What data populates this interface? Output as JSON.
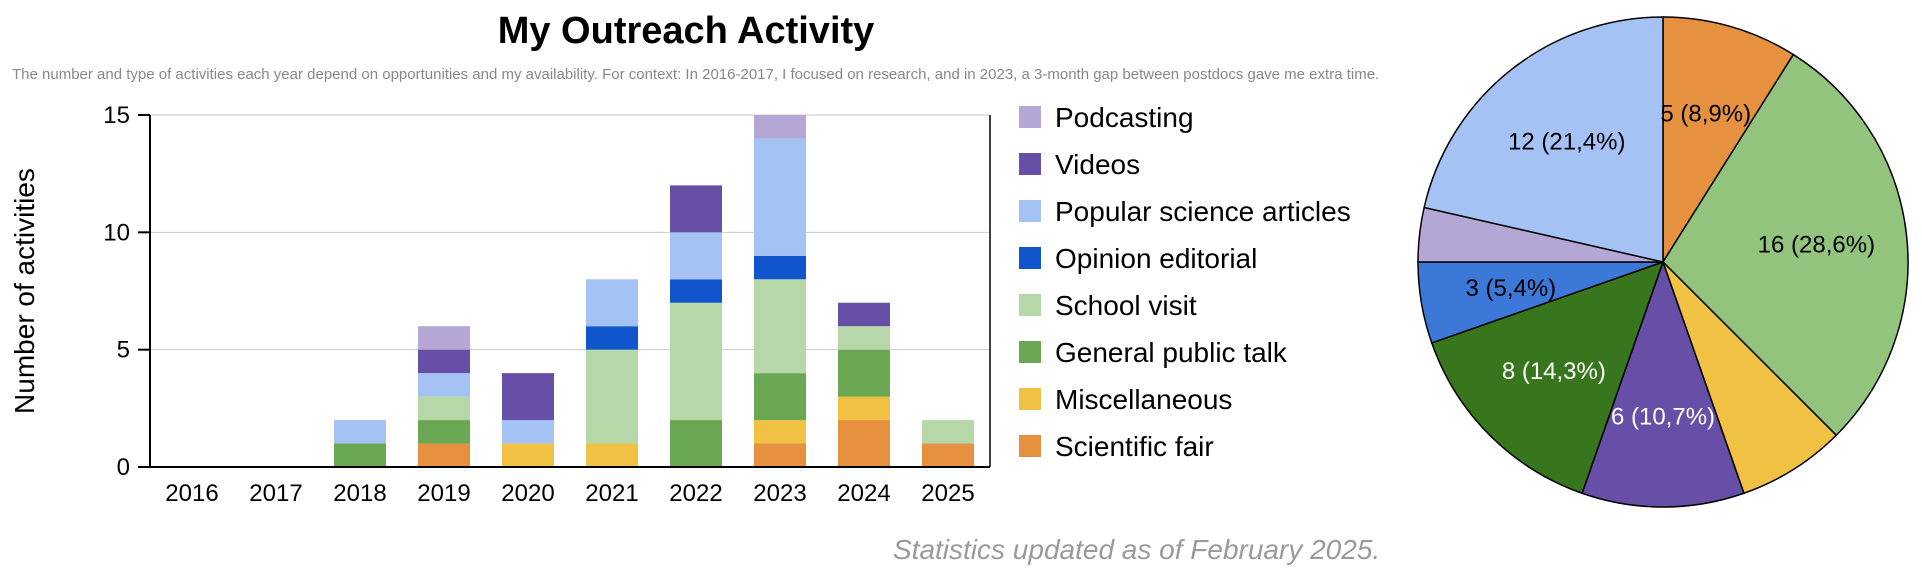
{
  "title": "My Outreach Activity",
  "subtitle": "The number and type of activities each year depend on opportunities and my availability. For context: In 2016-2017, I focused on research, and in 2023, a 3-month gap between postdocs gave me extra time.",
  "footnote": "Statistics updated as of February 2025.",
  "chart_data": [
    {
      "type": "bar",
      "stacked": true,
      "title": "",
      "xlabel": "",
      "ylabel": "Number of activities",
      "ylim": [
        0,
        15
      ],
      "yticks": [
        0,
        5,
        10,
        15
      ],
      "grid": true,
      "legend_position": "right",
      "categories": [
        "2016",
        "2017",
        "2018",
        "2019",
        "2020",
        "2021",
        "2022",
        "2023",
        "2024",
        "2025"
      ],
      "series": [
        {
          "name": "Scientific fair",
          "color": "#e69140",
          "values": [
            0,
            0,
            0,
            1,
            0,
            0,
            0,
            1,
            2,
            1
          ]
        },
        {
          "name": "Miscellaneous",
          "color": "#f1c143",
          "values": [
            0,
            0,
            0,
            0,
            1,
            1,
            0,
            1,
            1,
            0
          ]
        },
        {
          "name": "General public talk",
          "color": "#6aa753",
          "values": [
            0,
            0,
            1,
            1,
            0,
            0,
            2,
            2,
            2,
            0
          ]
        },
        {
          "name": "School visit",
          "color": "#b6d7a8",
          "values": [
            0,
            0,
            0,
            1,
            0,
            4,
            5,
            4,
            1,
            1
          ]
        },
        {
          "name": "Opinion editorial",
          "color": "#1155cc",
          "values": [
            0,
            0,
            0,
            0,
            0,
            1,
            1,
            1,
            0,
            0
          ]
        },
        {
          "name": "Popular science articles",
          "color": "#a4c2f4",
          "values": [
            0,
            0,
            1,
            1,
            1,
            2,
            2,
            5,
            0,
            0
          ]
        },
        {
          "name": "Videos",
          "color": "#674ea7",
          "values": [
            0,
            0,
            0,
            1,
            2,
            0,
            2,
            0,
            1,
            0
          ]
        },
        {
          "name": "Podcasting",
          "color": "#b4a7d6",
          "values": [
            0,
            0,
            0,
            1,
            0,
            0,
            0,
            1,
            0,
            0
          ]
        }
      ],
      "legend_order": [
        "Podcasting",
        "Videos",
        "Popular science articles",
        "Opinion editorial",
        "School visit",
        "General public talk",
        "Miscellaneous",
        "Scientific fair"
      ]
    },
    {
      "type": "pie",
      "title": "",
      "start_angle_deg": 0,
      "direction": "clockwise",
      "slices": [
        {
          "name": "Scientific fair",
          "value": 5,
          "label": "5 (8,9%)",
          "color": "#e69140",
          "text_color": "#000000"
        },
        {
          "name": "School visit",
          "value": 16,
          "label": "16 (28,6%)",
          "color": "#93c47d",
          "text_color": "#000000"
        },
        {
          "name": "Miscellaneous",
          "value": 4,
          "label": "",
          "color": "#f1c143",
          "text_color": "#000000"
        },
        {
          "name": "Videos",
          "value": 6,
          "label": "6 (10,7%)",
          "color": "#674ea7",
          "text_color": "#ffffff"
        },
        {
          "name": "General public talk",
          "value": 8,
          "label": "8 (14,3%)",
          "color": "#38761d",
          "text_color": "#ffffff"
        },
        {
          "name": "Opinion editorial",
          "value": 3,
          "label": "3 (5,4%)",
          "color": "#3c78d8",
          "text_color": "#000000"
        },
        {
          "name": "Podcasting",
          "value": 2,
          "label": "",
          "color": "#b4a7d6",
          "text_color": "#000000"
        },
        {
          "name": "Popular science articles",
          "value": 12,
          "label": "12 (21,4%)",
          "color": "#a4c2f4",
          "text_color": "#000000"
        }
      ]
    }
  ]
}
